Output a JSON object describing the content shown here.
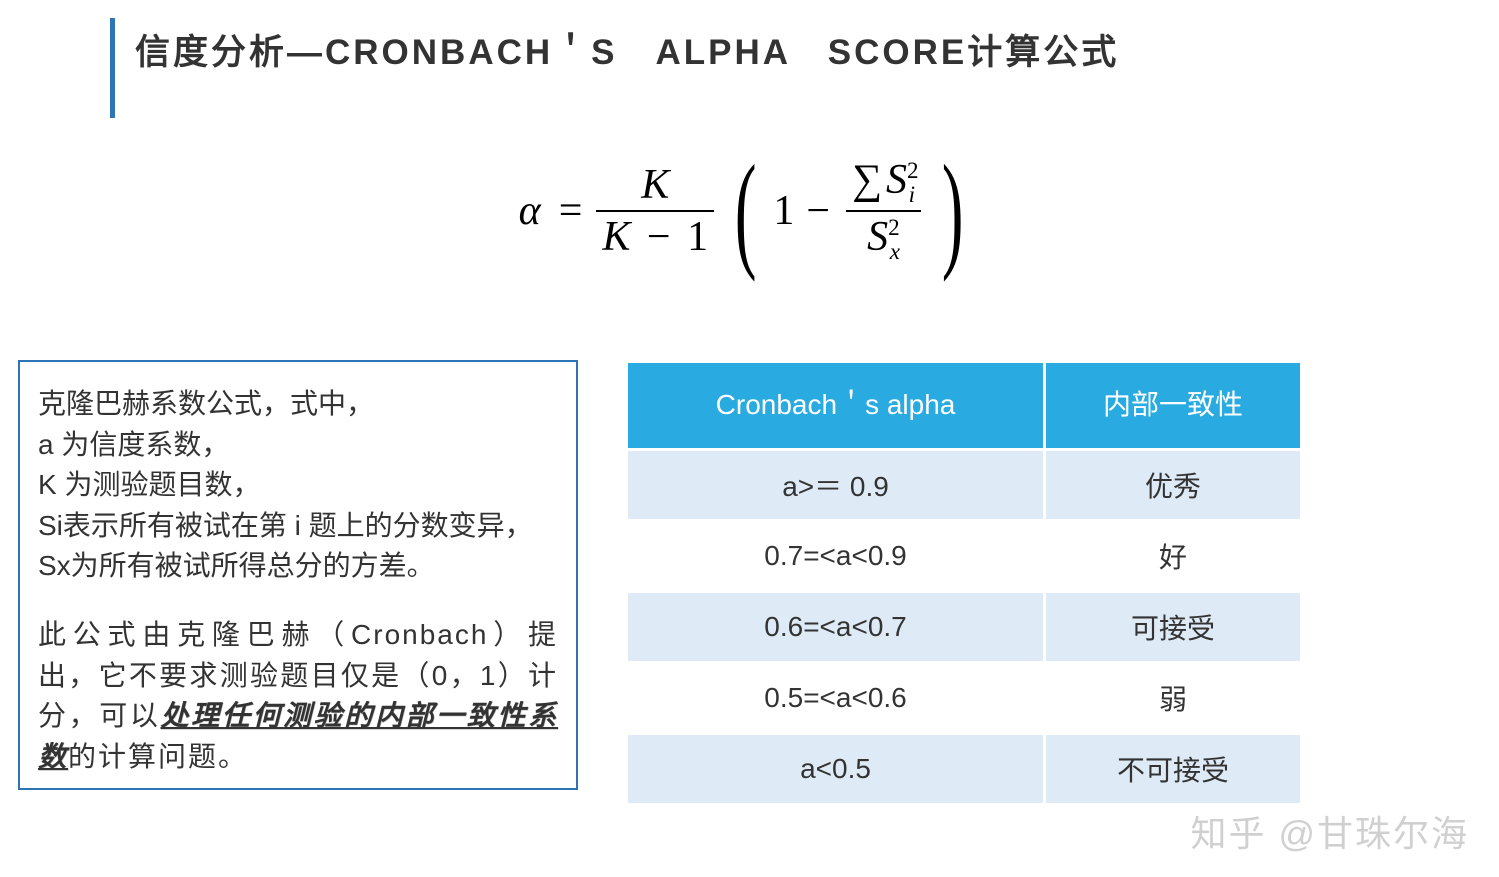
{
  "title": "信度分析—CRONBACH＇S　ALPHA　SCORE计算公式",
  "colors": {
    "accent_blue": "#2f75b5",
    "table_header_bg": "#29abe2",
    "table_header_fg": "#ffffff",
    "row_odd_bg": "#deeaf6",
    "row_even_bg": "#ffffff",
    "text": "#333333",
    "border_white": "#ffffff"
  },
  "formula": {
    "lhs": "α",
    "eq": "=",
    "frac1_num": "K",
    "frac1_den_left": "K",
    "frac1_den_minus": "−",
    "frac1_den_right": "1",
    "one": "1",
    "minus": "−",
    "frac2_num_sigma": "∑",
    "frac2_num_S": "S",
    "frac2_num_sup": "2",
    "frac2_num_sub": "i",
    "frac2_den_S": "S",
    "frac2_den_sup": "2",
    "frac2_den_sub": "x"
  },
  "description": {
    "line1": "克隆巴赫系数公式，式中，",
    "line2": "a 为信度系数，",
    "line3": "K 为测验题目数，",
    "line4": "Si表示所有被试在第 i 题上的分数变异，",
    "line5": "Sx为所有被试所得总分的方差。",
    "para2_a": "此公式由克隆巴赫（Cronbach）提出，它不要求测验题目仅是（0，1）计分，可以",
    "para2_em": "处理任何测验的内部一致性系数",
    "para2_b": "的计算问题。"
  },
  "table": {
    "header1": "Cronbach＇s alpha",
    "header2": "内部一致性",
    "rows": [
      {
        "alpha": "a>＝ 0.9",
        "label": "优秀"
      },
      {
        "alpha": "0.7=<a<0.9",
        "label": "好"
      },
      {
        "alpha": "0.6=<a<0.7",
        "label": "可接受"
      },
      {
        "alpha": "0.5=<a<0.6",
        "label": "弱"
      },
      {
        "alpha": "a<0.5",
        "label": "不可接受"
      }
    ]
  },
  "watermark": "知乎 @甘珠尔海"
}
